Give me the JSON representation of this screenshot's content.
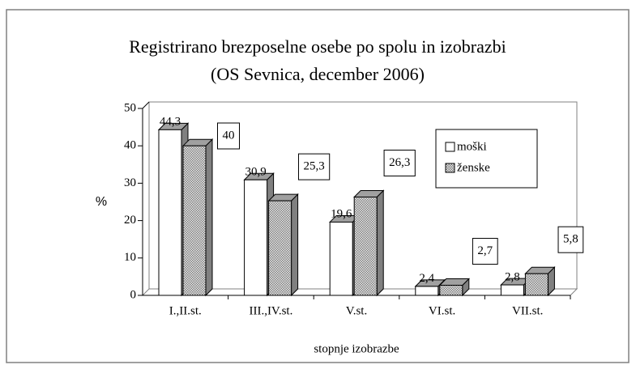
{
  "chart_data": {
    "type": "bar3d",
    "title": "Registrirano brezposelne osebe po spolu in izobrazbi",
    "subtitle": "(OS Sevnica, december 2006)",
    "x_label": "stopnje izobrazbe",
    "y_label": "%",
    "categories": [
      "I.,II.st.",
      "III.,IV.st.",
      "V.st.",
      "VI.st.",
      "VII.st."
    ],
    "series": [
      {
        "name": "moški",
        "color": "#ffffff",
        "values": [
          44.3,
          30.9,
          19.6,
          2.4,
          2.8
        ],
        "value_labels": [
          "44,3",
          "30,9",
          "19,6",
          "2,4",
          "2,8"
        ]
      },
      {
        "name": "ženske",
        "color": "#808080",
        "pattern": "dots",
        "values": [
          40,
          25.3,
          26.3,
          2.7,
          5.8
        ],
        "value_labels": [
          "40",
          "25,3",
          "26,3",
          "2,7",
          "5,8"
        ]
      }
    ],
    "ylim": [
      0,
      50
    ],
    "yticks": [
      0,
      10,
      20,
      30,
      40,
      50
    ],
    "grid": false,
    "legend": "top-right"
  }
}
